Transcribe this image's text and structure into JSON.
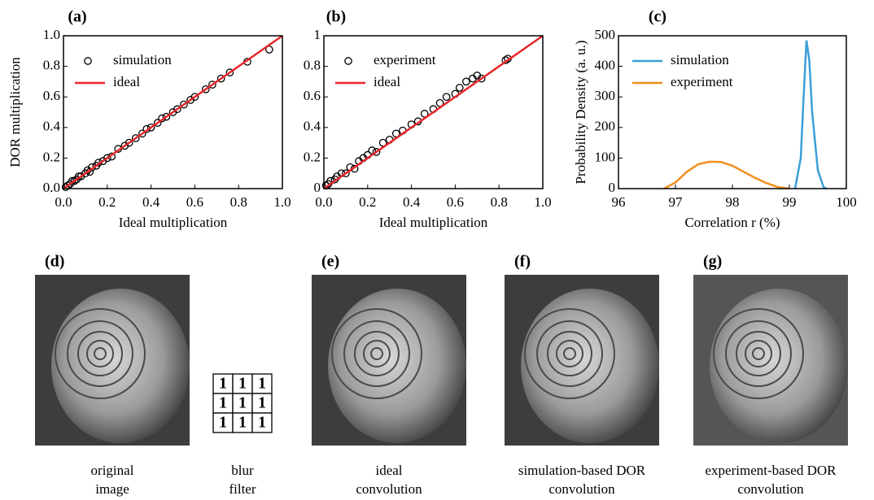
{
  "chart_data": [
    {
      "type": "scatter",
      "label": "(a)",
      "xlabel": "Ideal multiplication",
      "ylabel": "DOR multiplication",
      "xlim": [
        0,
        1
      ],
      "ylim": [
        0,
        1
      ],
      "xticks": [
        {
          "value": 0,
          "label": "0.0"
        },
        0.2,
        0.4,
        0.6,
        0.8,
        {
          "value": 1,
          "label": "1.0"
        }
      ],
      "yticks": [
        {
          "value": 0,
          "label": "0.0"
        },
        0.2,
        0.4,
        0.6,
        0.8,
        {
          "value": 1,
          "label": "1.0"
        }
      ],
      "series": [
        {
          "name": "simulation",
          "type": "scatter",
          "color": "#000000",
          "x": [
            0.01,
            0.02,
            0.03,
            0.04,
            0.05,
            0.06,
            0.07,
            0.08,
            0.1,
            0.11,
            0.12,
            0.13,
            0.15,
            0.16,
            0.18,
            0.2,
            0.22,
            0.25,
            0.28,
            0.3,
            0.33,
            0.36,
            0.38,
            0.4,
            0.43,
            0.45,
            0.47,
            0.5,
            0.52,
            0.55,
            0.58,
            0.6,
            0.65,
            0.68,
            0.72,
            0.76,
            0.84,
            0.94
          ],
          "y": [
            0.01,
            0.02,
            0.03,
            0.05,
            0.05,
            0.06,
            0.08,
            0.08,
            0.1,
            0.12,
            0.11,
            0.14,
            0.15,
            0.17,
            0.18,
            0.2,
            0.21,
            0.26,
            0.28,
            0.3,
            0.33,
            0.36,
            0.39,
            0.4,
            0.43,
            0.46,
            0.47,
            0.5,
            0.52,
            0.55,
            0.58,
            0.6,
            0.65,
            0.68,
            0.72,
            0.76,
            0.83,
            0.91
          ]
        },
        {
          "name": "ideal",
          "type": "line",
          "color": "#e8262a",
          "x": [
            0,
            1
          ],
          "y": [
            0,
            1
          ]
        }
      ]
    },
    {
      "type": "scatter",
      "label": "(b)",
      "xlabel": "Ideal multiplication",
      "xlim": [
        0,
        1
      ],
      "ylim": [
        0,
        1
      ],
      "xticks": [
        {
          "value": 0,
          "label": "0.0"
        },
        0.2,
        0.4,
        0.6,
        0.8,
        {
          "value": 1,
          "label": "1.0"
        }
      ],
      "yticks": [
        0,
        0.2,
        0.4,
        0.6,
        0.8,
        1
      ],
      "series": [
        {
          "name": "experiment",
          "type": "scatter",
          "color": "#000000",
          "x": [
            0.01,
            0.02,
            0.03,
            0.05,
            0.06,
            0.08,
            0.1,
            0.12,
            0.14,
            0.16,
            0.18,
            0.2,
            0.22,
            0.24,
            0.27,
            0.3,
            0.33,
            0.36,
            0.4,
            0.43,
            0.46,
            0.5,
            0.53,
            0.56,
            0.6,
            0.62,
            0.65,
            0.68,
            0.7,
            0.72,
            0.83,
            0.84
          ],
          "y": [
            0.02,
            0.03,
            0.05,
            0.06,
            0.08,
            0.1,
            0.1,
            0.14,
            0.13,
            0.18,
            0.2,
            0.22,
            0.25,
            0.24,
            0.3,
            0.32,
            0.36,
            0.38,
            0.42,
            0.44,
            0.49,
            0.52,
            0.56,
            0.6,
            0.62,
            0.66,
            0.7,
            0.72,
            0.74,
            0.72,
            0.84,
            0.85
          ]
        },
        {
          "name": "ideal",
          "type": "line",
          "color": "#e8262a",
          "x": [
            0,
            1
          ],
          "y": [
            0,
            1
          ]
        }
      ]
    },
    {
      "type": "line",
      "label": "(c)",
      "xlabel": "Correlation r (%)",
      "ylabel": "Probability Density (a. u.)",
      "xlim": [
        96,
        100
      ],
      "ylim": [
        0,
        500
      ],
      "xticks": [
        96,
        97,
        98,
        99,
        100
      ],
      "yticks": [
        0,
        100,
        200,
        300,
        400,
        500
      ],
      "series": [
        {
          "name": "simulation",
          "type": "line",
          "color": "#3a9fd8",
          "x": [
            99.1,
            99.2,
            99.25,
            99.3,
            99.35,
            99.4,
            99.5,
            99.6,
            99.65
          ],
          "y": [
            0,
            100,
            300,
            485,
            420,
            250,
            60,
            5,
            0
          ]
        },
        {
          "name": "experiment",
          "type": "line",
          "color": "#f28e1c",
          "x": [
            96.8,
            97.0,
            97.2,
            97.4,
            97.6,
            97.8,
            98.0,
            98.2,
            98.4,
            98.6,
            98.8,
            99.0
          ],
          "y": [
            0,
            20,
            55,
            80,
            88,
            87,
            75,
            55,
            35,
            18,
            5,
            0
          ]
        }
      ]
    }
  ],
  "images": [
    {
      "label": "(d)",
      "caption": [
        "original",
        "image"
      ]
    },
    {
      "label": "(e)",
      "caption": [
        "ideal",
        "convolution"
      ]
    },
    {
      "label": "(f)",
      "caption": [
        "simulation-based DOR",
        "convolution"
      ]
    },
    {
      "label": "(g)",
      "caption": [
        "experiment-based DOR",
        "convolution"
      ]
    }
  ],
  "filter": {
    "values": [
      [
        1,
        1,
        1
      ],
      [
        1,
        1,
        1
      ],
      [
        1,
        1,
        1
      ]
    ],
    "caption": [
      "blur",
      "filter"
    ]
  }
}
